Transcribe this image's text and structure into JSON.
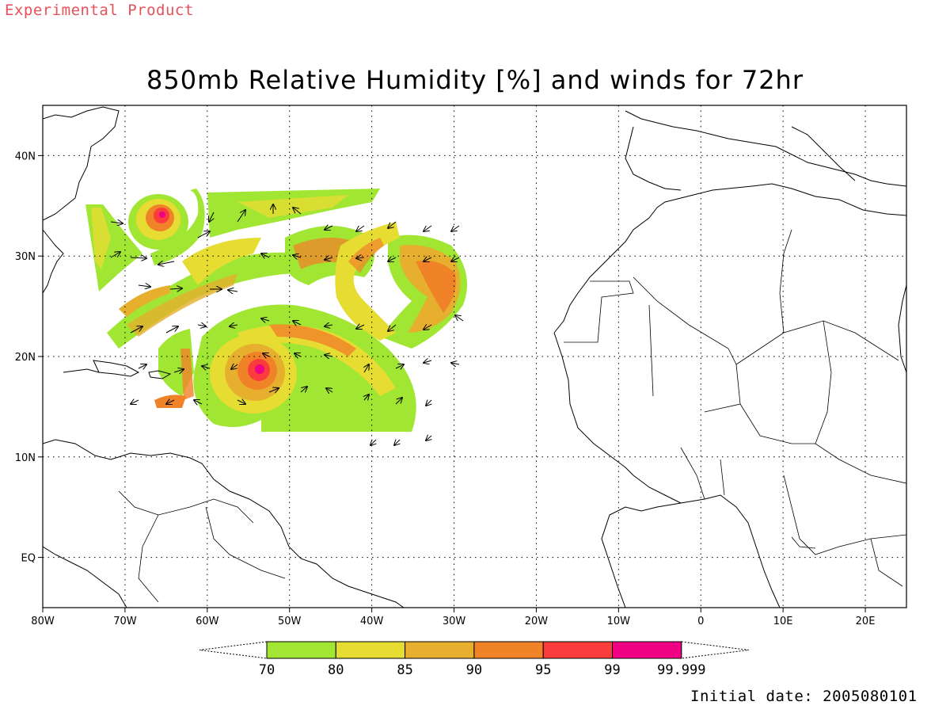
{
  "header": {
    "product_note": "Experimental Product",
    "title": "850mb Relative Humidity [%] and winds for 72hr"
  },
  "footer": {
    "initial_date": "Initial date: 2005080101"
  },
  "chart_data": {
    "type": "map",
    "variable": "850mb Relative Humidity",
    "units": "%",
    "forecast_hour": "72hr",
    "lon_range": [
      -80,
      25
    ],
    "lat_range": [
      -5,
      45
    ],
    "grid": true,
    "lon_ticks": [
      {
        "value": -80,
        "label": "80W"
      },
      {
        "value": -70,
        "label": "70W"
      },
      {
        "value": -60,
        "label": "60W"
      },
      {
        "value": -50,
        "label": "50W"
      },
      {
        "value": -40,
        "label": "40W"
      },
      {
        "value": -30,
        "label": "30W"
      },
      {
        "value": -20,
        "label": "20W"
      },
      {
        "value": -10,
        "label": "10W"
      },
      {
        "value": 0,
        "label": "0"
      },
      {
        "value": 10,
        "label": "10E"
      },
      {
        "value": 20,
        "label": "20E"
      }
    ],
    "lat_ticks": [
      {
        "value": 40,
        "label": "40N"
      },
      {
        "value": 30,
        "label": "30N"
      },
      {
        "value": 20,
        "label": "20N"
      },
      {
        "value": 10,
        "label": "10N"
      },
      {
        "value": 0,
        "label": "EQ"
      }
    ],
    "colorbar": {
      "colors": [
        "#a0e632",
        "#e6dc32",
        "#e6af2d",
        "#f08228",
        "#fa3c3c",
        "#f00082"
      ],
      "labels": [
        "70",
        "80",
        "85",
        "90",
        "95",
        "99",
        "99.999"
      ]
    },
    "cyclones": [
      {
        "lon": -53.5,
        "lat": 19.0
      },
      {
        "lon": -65.5,
        "lat": 34.0
      }
    ]
  }
}
